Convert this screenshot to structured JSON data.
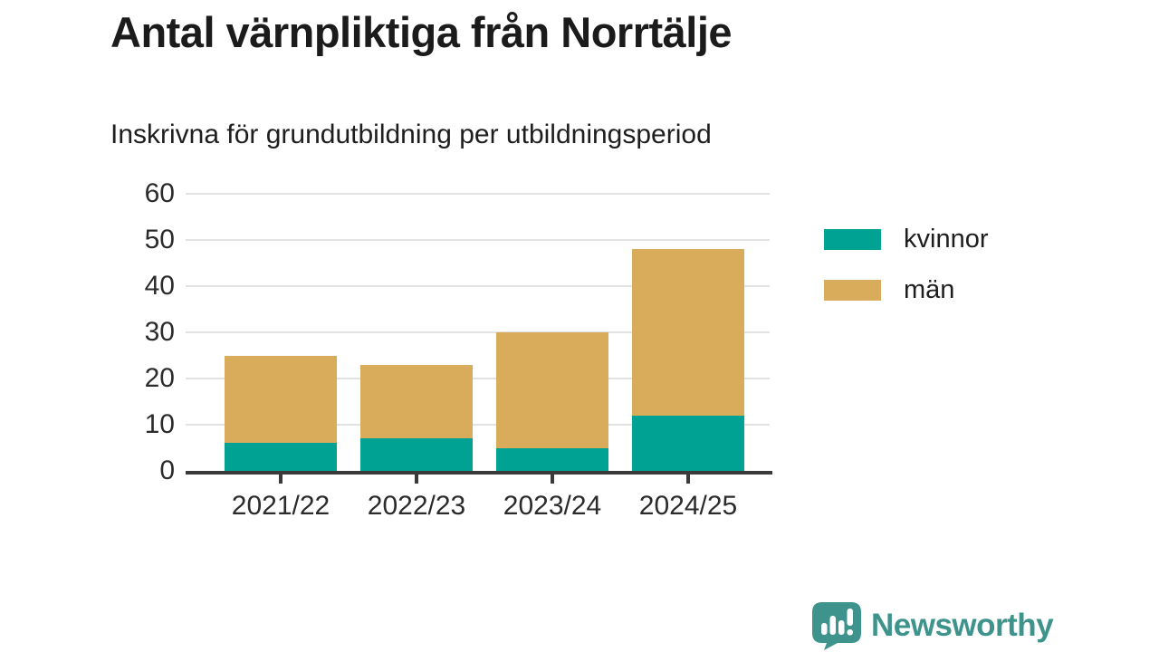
{
  "header": {
    "title": "Antal värnpliktiga från Norrtälje",
    "subtitle": "Inskrivna för grundutbildning per utbildningsperiod"
  },
  "chart_data": {
    "type": "bar",
    "stacked": true,
    "title": "Antal värnpliktiga från Norrtälje",
    "subtitle": "Inskrivna för grundutbildning per utbildningsperiod",
    "categories": [
      "2021/22",
      "2022/23",
      "2023/24",
      "2024/25"
    ],
    "series": [
      {
        "name": "kvinnor",
        "color": "#00A294",
        "values": [
          6,
          7,
          5,
          12
        ]
      },
      {
        "name": "män",
        "color": "#D9AC5B",
        "values": [
          19,
          16,
          25,
          36
        ]
      }
    ],
    "stack_totals": [
      25,
      23,
      30,
      48
    ],
    "xlabel": "",
    "ylabel": "",
    "ylim": [
      0,
      60
    ],
    "yticks": [
      0,
      10,
      20,
      30,
      40,
      50,
      60
    ],
    "grid": true,
    "gridline_color": "#e2e2e2",
    "axis_color": "#3a3a3a",
    "legend_position": "right-of-plot"
  },
  "legend": {
    "items": [
      {
        "label": "kvinnor",
        "color": "#00A294"
      },
      {
        "label": "män",
        "color": "#D9AC5B"
      }
    ]
  },
  "footer": {
    "brand": "Newsworthy",
    "brand_color": "#3E948C"
  }
}
